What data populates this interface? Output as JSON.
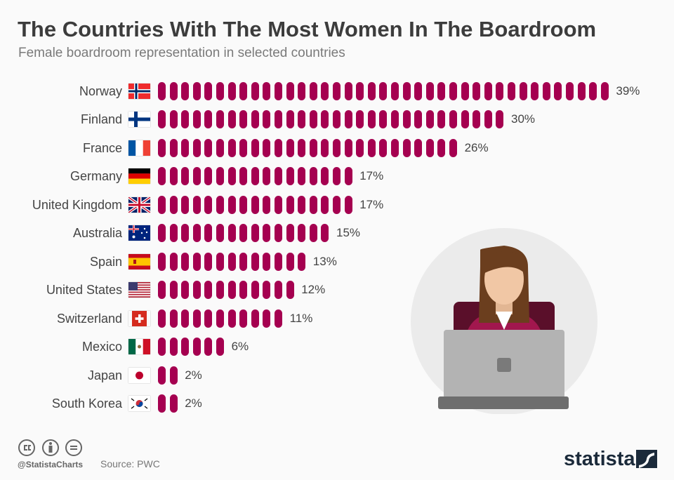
{
  "header": {
    "title": "The Countries With The Most Women In The Boardroom",
    "subtitle": "Female boardroom representation in selected countries"
  },
  "footer": {
    "handle": "@StatistaCharts",
    "source": "Source: PWC",
    "logo": "statista"
  },
  "colors": {
    "bar": "#a50050",
    "text": "#444444"
  },
  "chart_data": {
    "type": "bar",
    "orientation": "horizontal",
    "title": "The Countries With The Most Women In The Boardroom",
    "subtitle": "Female boardroom representation in selected countries",
    "unit": "%",
    "categories": [
      "Norway",
      "Finland",
      "France",
      "Germany",
      "United Kingdom",
      "Australia",
      "Spain",
      "United States",
      "Switzerland",
      "Mexico",
      "Japan",
      "South Korea"
    ],
    "values": [
      39,
      30,
      26,
      17,
      17,
      15,
      13,
      12,
      11,
      6,
      2,
      2
    ],
    "labels": [
      "39%",
      "30%",
      "26%",
      "17%",
      "17%",
      "15%",
      "13%",
      "12%",
      "11%",
      "6%",
      "2%",
      "2%"
    ],
    "flags": [
      "no",
      "fi",
      "fr",
      "de",
      "gb",
      "au",
      "es",
      "us",
      "ch",
      "mx",
      "jp",
      "kr"
    ]
  }
}
